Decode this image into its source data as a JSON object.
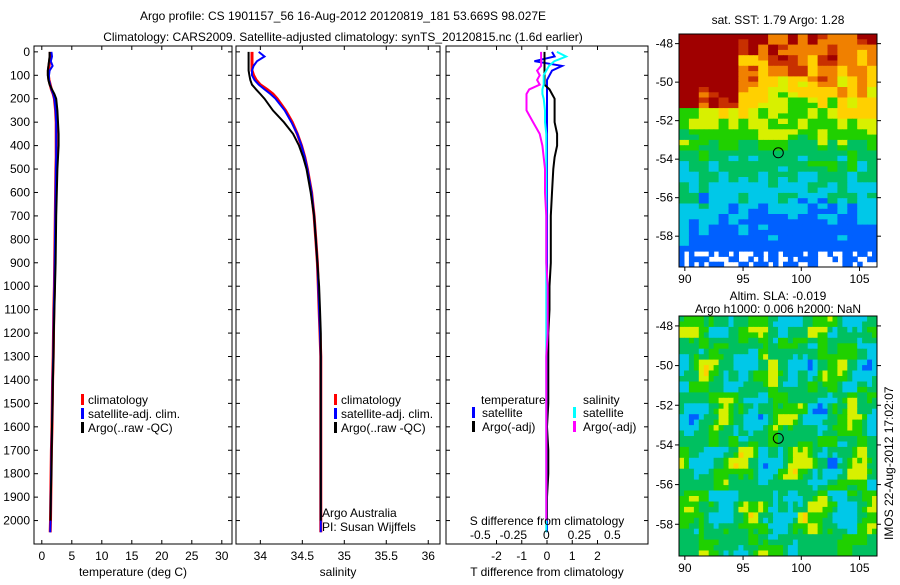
{
  "title": {
    "line1": "Argo profile: CS 1901157_56 16-Aug-2012 20120819_181 53.669S 98.027E",
    "line2": "Climatology: CARS2009. Satellite-adjusted climatology: synTS_20120815.nc (1.6d earlier)"
  },
  "footer_stamp": "IMOS 22-Aug-2012 17:02:07",
  "colors": {
    "climatology": "#ff0000",
    "satellite": "#0000ff",
    "argo": "#000000",
    "sal_satellite": "#00ffff",
    "sal_argo": "#ff00ff"
  },
  "chart_data": [
    {
      "type": "line",
      "id": "temperature",
      "xlabel": "temperature (deg C)",
      "ylabel": "",
      "xlim": [
        -1.3,
        31.7
      ],
      "ylim": [
        2100,
        -25
      ],
      "xticks": [
        0,
        5,
        10,
        15,
        20,
        25,
        30
      ],
      "yticks": [
        0,
        100,
        200,
        300,
        400,
        500,
        600,
        700,
        800,
        900,
        1000,
        1100,
        1200,
        1300,
        1400,
        1500,
        1600,
        1700,
        1800,
        1900,
        2000
      ],
      "depth": [
        0,
        20,
        40,
        60,
        80,
        100,
        120,
        140,
        160,
        180,
        200,
        250,
        300,
        350,
        400,
        450,
        500,
        600,
        700,
        800,
        900,
        1000,
        1100,
        1200,
        1300,
        1400,
        1500,
        1600,
        1700,
        1800,
        1900,
        2000,
        2050
      ],
      "legend": [
        "climatology",
        "satellite-adj. clim.",
        "Argo(..raw -QC)"
      ],
      "series": [
        {
          "name": "climatology",
          "color": "#ff0000",
          "values": [
            1.4,
            1.4,
            1.3,
            1.2,
            1.1,
            1.1,
            1.2,
            1.4,
            1.6,
            1.9,
            2.1,
            2.3,
            2.4,
            2.4,
            2.4,
            2.4,
            2.35,
            2.3,
            2.25,
            2.2,
            2.15,
            2.1,
            2.0,
            1.95,
            1.9,
            1.8,
            1.75,
            1.7,
            1.6,
            1.55,
            1.5,
            1.45,
            1.4
          ]
        },
        {
          "name": "satellite-adj. clim.",
          "color": "#0000ff",
          "values": [
            1.6,
            1.7,
            1.5,
            1.8,
            1.3,
            1.2,
            1.2,
            1.4,
            1.6,
            1.9,
            2.1,
            2.3,
            2.4,
            2.4,
            2.4,
            2.4,
            2.35,
            2.3,
            2.25,
            2.2,
            2.15,
            2.1,
            2.0,
            1.95,
            1.9,
            1.8,
            1.75,
            1.7,
            1.6,
            1.55,
            1.5,
            1.45,
            1.4
          ]
        },
        {
          "name": "Argo(..raw -QC)",
          "color": "#000000",
          "values": [
            1.3,
            1.3,
            1.2,
            1.1,
            1.0,
            1.0,
            1.1,
            1.3,
            1.7,
            2.1,
            2.4,
            2.6,
            2.7,
            2.8,
            2.8,
            2.7,
            2.6,
            2.5,
            2.4,
            2.35,
            2.3,
            2.2,
            2.1,
            2.0,
            1.95,
            1.85,
            1.8,
            1.7,
            1.65,
            1.6,
            1.5,
            1.45,
            null
          ]
        }
      ]
    },
    {
      "type": "line",
      "id": "salinity",
      "xlabel": "salinity",
      "xlim": [
        33.71,
        36.14
      ],
      "ylim": [
        2100,
        -25
      ],
      "xticks": [
        34,
        34.5,
        35,
        35.5,
        36
      ],
      "legend": [
        "climatology",
        "satellite-adj. clim.",
        "Argo(..raw -QC)"
      ],
      "annotation": [
        "Argo Australia",
        "PI: Susan Wijffels"
      ],
      "series": [
        {
          "name": "climatology",
          "color": "#ff0000",
          "values": [
            33.9,
            33.9,
            33.9,
            33.9,
            33.9,
            33.92,
            33.95,
            34.0,
            34.08,
            34.15,
            34.2,
            34.3,
            34.38,
            34.44,
            34.49,
            34.53,
            34.56,
            34.61,
            34.64,
            34.66,
            34.68,
            34.69,
            34.7,
            34.71,
            34.72,
            34.72,
            34.72,
            34.72,
            34.72,
            34.72,
            34.72,
            34.72,
            34.72
          ]
        },
        {
          "name": "satellite-adj. clim.",
          "color": "#0000ff",
          "values": [
            33.98,
            34.05,
            33.96,
            33.92,
            33.9,
            33.9,
            33.93,
            33.98,
            34.05,
            34.12,
            34.18,
            34.29,
            34.37,
            34.44,
            34.49,
            34.53,
            34.56,
            34.61,
            34.64,
            34.66,
            34.68,
            34.69,
            34.7,
            34.71,
            34.72,
            34.72,
            34.72,
            34.72,
            34.72,
            34.72,
            34.72,
            34.72,
            34.72
          ]
        },
        {
          "name": "Argo(..raw -QC)",
          "color": "#000000",
          "values": [
            33.86,
            33.86,
            33.86,
            33.86,
            33.86,
            33.87,
            33.88,
            33.9,
            33.95,
            34.0,
            34.05,
            34.15,
            34.28,
            34.39,
            34.46,
            34.51,
            34.55,
            34.6,
            34.64,
            34.66,
            34.68,
            34.7,
            34.71,
            34.72,
            34.72,
            34.72,
            34.72,
            34.72,
            34.72,
            34.72,
            34.72,
            34.72,
            null
          ]
        }
      ]
    },
    {
      "type": "line",
      "id": "difference",
      "xlabel": "T difference from climatology",
      "xlabel_top": "S difference from climatology",
      "xlim": [
        -4,
        4
      ],
      "xticks": [
        -2,
        -1,
        0,
        1,
        2
      ],
      "xlim_top": [
        -0.76,
        0.77
      ],
      "xticks_top": [
        -0.5,
        -0.25,
        0,
        0.25,
        0.5
      ],
      "ylim": [
        2100,
        -25
      ],
      "legend": {
        "temperature_title": "temperature",
        "salinity_title": "salinity",
        "temperature": [
          "satellite",
          "Argo(-adj)"
        ],
        "salinity": [
          "satellite",
          "Argo(-adj)"
        ]
      },
      "series": [
        {
          "name": "T satellite",
          "axis": "T",
          "color": "#0000ff",
          "values": [
            0.2,
            0.3,
            -0.5,
            0.6,
            0.2,
            0.1,
            0,
            0,
            0,
            0,
            0,
            0,
            0,
            0,
            0,
            0,
            0,
            0,
            0,
            0,
            0,
            0,
            0,
            0,
            0,
            0,
            0,
            0,
            0,
            0,
            0,
            0,
            0
          ]
        },
        {
          "name": "T Argo(-adj)",
          "axis": "T",
          "color": "#000000",
          "values": [
            -0.1,
            -0.1,
            -0.1,
            -0.1,
            -0.1,
            -0.1,
            -0.1,
            -0.1,
            0.1,
            0.2,
            0.3,
            0.3,
            0.3,
            0.4,
            0.4,
            0.3,
            0.25,
            0.2,
            0.15,
            0.15,
            0.15,
            0.1,
            0.1,
            0.05,
            0.05,
            0.05,
            0.05,
            0,
            0.05,
            0.05,
            0,
            0,
            null
          ]
        },
        {
          "name": "S satellite",
          "axis": "S",
          "color": "#00ffff",
          "values": [
            0.08,
            0.15,
            0.06,
            0.02,
            0,
            -0.02,
            -0.02,
            -0.02,
            -0.03,
            -0.03,
            -0.02,
            -0.01,
            -0.01,
            0,
            0,
            0,
            0,
            0,
            0,
            0,
            0,
            0,
            0,
            0,
            0,
            0,
            0,
            0,
            0,
            0,
            0,
            0,
            0
          ]
        },
        {
          "name": "S Argo(-adj)",
          "axis": "S",
          "color": "#ff00ff",
          "values": [
            -0.04,
            -0.04,
            -0.04,
            -0.04,
            -0.07,
            -0.05,
            -0.07,
            -0.05,
            -0.13,
            -0.15,
            -0.15,
            -0.15,
            -0.1,
            -0.05,
            -0.03,
            -0.02,
            -0.01,
            -0.01,
            0,
            0,
            0,
            0.01,
            0.01,
            0.01,
            0,
            0,
            0,
            0,
            0,
            0,
            0,
            0,
            null
          ]
        }
      ]
    },
    {
      "type": "heatmap",
      "id": "sst-map",
      "title": "sat. SST: 1.79 Argo: 1.28",
      "xlim": [
        89.5,
        106.5
      ],
      "ylim": [
        -59.6,
        -47.5
      ],
      "xticks": [
        90,
        95,
        100,
        105
      ],
      "yticks": [
        -48,
        -50,
        -52,
        -54,
        -56,
        -58
      ],
      "marker": {
        "lon": 98.027,
        "lat": -53.669
      }
    },
    {
      "type": "heatmap",
      "id": "sla-map",
      "title": "Altim. SLA: -0.019",
      "subtitle": "Argo h1000: 0.006 h2000: NaN",
      "xlim": [
        89.5,
        106.5
      ],
      "ylim": [
        -59.6,
        -47.5
      ],
      "xticks": [
        90,
        95,
        100,
        105
      ],
      "yticks": [
        -48,
        -50,
        -52,
        -54,
        -56,
        -58
      ],
      "marker": {
        "lon": 98.027,
        "lat": -53.669
      }
    }
  ]
}
